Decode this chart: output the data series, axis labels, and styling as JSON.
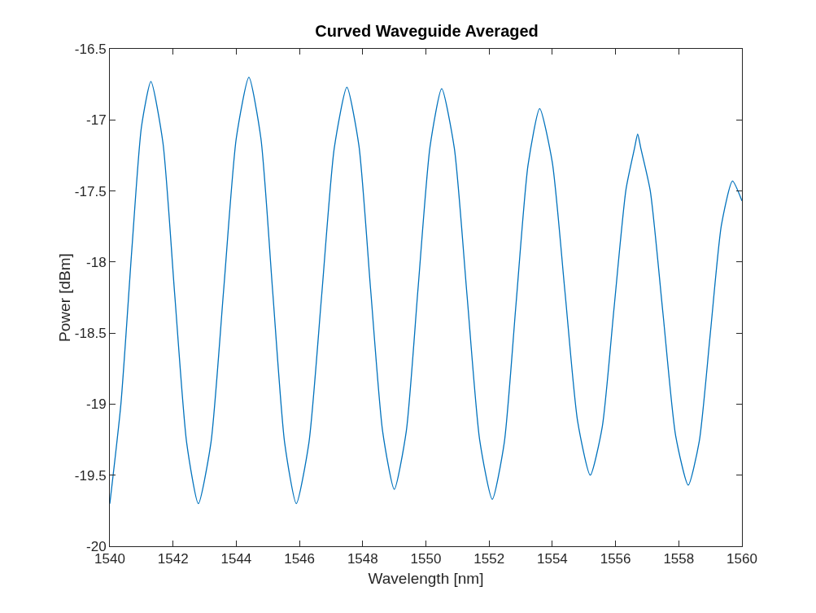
{
  "chart_data": {
    "type": "line",
    "title": "Curved Waveguide Averaged",
    "xlabel": "Wavelength [nm]",
    "ylabel": "Power [dBm]",
    "x": [
      1540,
      1540.35,
      1540.7,
      1541.0,
      1541.3,
      1541.68,
      1542.05,
      1542.43,
      1542.8,
      1543.2,
      1543.6,
      1544.0,
      1544.4,
      1544.78,
      1545.15,
      1545.53,
      1545.9,
      1546.3,
      1546.7,
      1547.1,
      1547.5,
      1547.88,
      1548.25,
      1548.63,
      1549.0,
      1549.38,
      1549.75,
      1550.13,
      1550.5,
      1550.9,
      1551.3,
      1551.7,
      1552.1,
      1552.48,
      1552.85,
      1553.23,
      1553.6,
      1554.0,
      1554.4,
      1554.8,
      1555.2,
      1555.58,
      1555.95,
      1556.33,
      1556.6,
      1556.7,
      1556.8,
      1557.1,
      1557.5,
      1557.9,
      1558.3,
      1558.65,
      1559.0,
      1559.35,
      1559.7,
      1560
    ],
    "series": [
      {
        "color": "#0072bd",
        "values": [
          -19.7,
          -19.0,
          -17.9,
          -17.05,
          -16.73,
          -17.16,
          -18.22,
          -19.27,
          -19.7,
          -19.27,
          -18.2,
          -17.13,
          -16.7,
          -17.13,
          -18.2,
          -19.27,
          -19.7,
          -19.27,
          -18.24,
          -17.2,
          -16.77,
          -17.18,
          -18.19,
          -19.19,
          -19.6,
          -19.19,
          -18.19,
          -17.19,
          -16.78,
          -17.2,
          -18.23,
          -19.25,
          -19.67,
          -19.27,
          -18.3,
          -17.32,
          -16.92,
          -17.3,
          -18.21,
          -19.12,
          -19.5,
          -19.16,
          -18.33,
          -17.49,
          -17.2,
          -17.1,
          -17.2,
          -17.5,
          -18.36,
          -19.22,
          -19.57,
          -19.26,
          -18.5,
          -17.74,
          -17.43,
          -17.57
        ]
      }
    ],
    "xlim": [
      1540,
      1560
    ],
    "xticks": [
      1540,
      1542,
      1544,
      1546,
      1548,
      1550,
      1552,
      1554,
      1556,
      1558,
      1560
    ],
    "ylim": [
      -20,
      -16.5
    ],
    "yticks": [
      -20,
      -19.5,
      -19,
      -18.5,
      -18,
      -17.5,
      -17,
      -16.5
    ],
    "grid": false,
    "marker": "none",
    "line_style": "solid"
  }
}
